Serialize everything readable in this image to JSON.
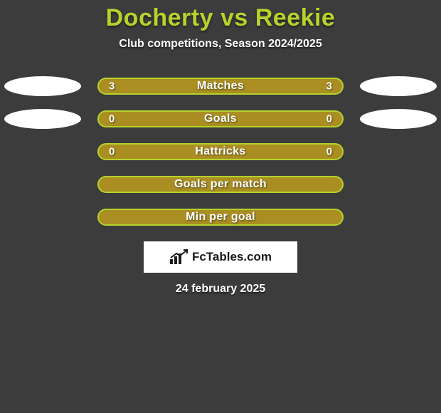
{
  "background_color": "#3c3c3c",
  "title": {
    "text": "Docherty vs Reekie",
    "color": "#b6d22c",
    "fontsize": 34
  },
  "subtitle": {
    "text": "Club competitions, Season 2024/2025",
    "color": "#ffffff",
    "fontsize": 16
  },
  "bar_style": {
    "fill_color": "#aa8e22",
    "border_color": "#b6d22c",
    "border_width": 2,
    "label_color": "#ffffff",
    "label_fontsize": 16,
    "value_color": "#ffffff",
    "value_fontsize": 15
  },
  "ellipse_color": "#ffffff",
  "rows": [
    {
      "label": "Matches",
      "left": "3",
      "right": "3",
      "show_values": true,
      "ellipse_left": true,
      "ellipse_right": true
    },
    {
      "label": "Goals",
      "left": "0",
      "right": "0",
      "show_values": true,
      "ellipse_left": true,
      "ellipse_right": true
    },
    {
      "label": "Hattricks",
      "left": "0",
      "right": "0",
      "show_values": true,
      "ellipse_left": false,
      "ellipse_right": false
    },
    {
      "label": "Goals per match",
      "left": "",
      "right": "",
      "show_values": false,
      "ellipse_left": false,
      "ellipse_right": false
    },
    {
      "label": "Min per goal",
      "left": "",
      "right": "",
      "show_values": false,
      "ellipse_left": false,
      "ellipse_right": false
    }
  ],
  "brand": {
    "box_bg": "#ffffff",
    "text": "FcTables.com",
    "text_color": "#1a1a1a",
    "text_fontsize": 17,
    "icon_color": "#1a1a1a"
  },
  "date": {
    "text": "24 february 2025",
    "color": "#ffffff",
    "fontsize": 16
  }
}
